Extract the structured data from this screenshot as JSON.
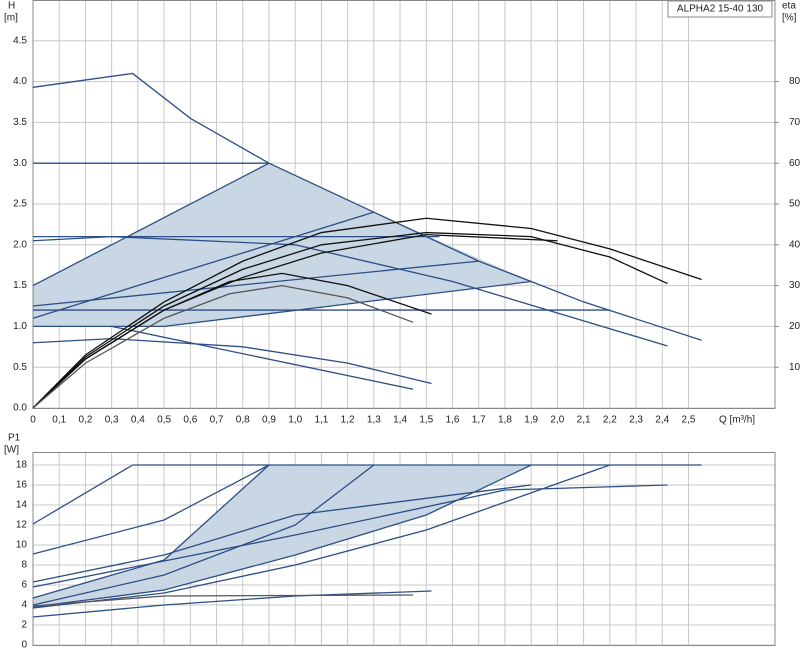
{
  "chart_data": [
    {
      "type": "line",
      "title": "ALPHA2 15-40 130",
      "ylabel": "H",
      "yunit": "[m]",
      "y2label": "eta",
      "y2unit": "[%]",
      "xlabel": "Q [m³/h]",
      "xlim": [
        0,
        2.83
      ],
      "ylim": [
        0,
        5
      ],
      "y2lim": [
        0,
        100
      ],
      "grid": true,
      "xticks": [
        0,
        {
          "value": 0.1,
          "label": "0,1"
        },
        {
          "value": 0.2,
          "label": "0,2"
        },
        {
          "value": 0.3,
          "label": "0,3"
        },
        {
          "value": 0.4,
          "label": "0,4"
        },
        {
          "value": 0.5,
          "label": "0,5"
        },
        {
          "value": 0.6,
          "label": "0,6"
        },
        {
          "value": 0.7,
          "label": "0,7"
        },
        {
          "value": 0.8,
          "label": "0,8"
        },
        {
          "value": 0.9,
          "label": "0,9"
        },
        {
          "value": 1.0,
          "label": "1,0"
        },
        {
          "value": 1.1,
          "label": "1,1"
        },
        {
          "value": 1.2,
          "label": "1,2"
        },
        {
          "value": 1.3,
          "label": "1,3"
        },
        {
          "value": 1.4,
          "label": "1,4"
        },
        {
          "value": 1.5,
          "label": "1,5"
        },
        {
          "value": 1.6,
          "label": "1,6"
        },
        {
          "value": 1.7,
          "label": "1,7"
        },
        {
          "value": 1.8,
          "label": "1,8"
        },
        {
          "value": 1.9,
          "label": "1,9"
        },
        {
          "value": 2.0,
          "label": "2,0"
        },
        {
          "value": 2.1,
          "label": "2,1"
        },
        {
          "value": 2.2,
          "label": "2,2"
        },
        {
          "value": 2.3,
          "label": "2,3"
        },
        {
          "value": 2.4,
          "label": "2,4"
        },
        {
          "value": 2.5,
          "label": "2,5"
        }
      ],
      "yticks": [
        {
          "value": 0,
          "label": "0.0"
        },
        0.5,
        {
          "value": 1,
          "label": "1.0"
        },
        1.5,
        {
          "value": 2,
          "label": "2.0"
        },
        2.5,
        {
          "value": 3,
          "label": "3.0"
        },
        3.5,
        {
          "value": 4,
          "label": "4.0"
        },
        4.5
      ],
      "y2ticks": [
        10,
        20,
        30,
        40,
        50,
        60,
        70,
        80
      ],
      "areas": [
        {
          "color": "#c9d6e4",
          "x": [
            0,
            0.9,
            1.3,
            1.9,
            0.5,
            0
          ],
          "values": [
            1.5,
            3.0,
            2.4,
            1.55,
            1.0,
            1.0
          ]
        }
      ],
      "series": [
        {
          "color": "#2b4f86",
          "x": [
            0,
            0.38,
            0.6,
            0.9,
            1.3,
            1.7,
            2.1,
            2.55
          ],
          "values": [
            3.93,
            4.1,
            3.55,
            3.0,
            2.4,
            1.8,
            1.3,
            0.83
          ]
        },
        {
          "color": "#2b4f86",
          "x": [
            0,
            0.9
          ],
          "values": [
            3.0,
            3.0
          ]
        },
        {
          "color": "#2b4f86",
          "x": [
            0,
            0.9
          ],
          "values": [
            1.5,
            3.0
          ]
        },
        {
          "color": "#2b4f86",
          "x": [
            0,
            1.55
          ],
          "values": [
            2.1,
            2.1
          ]
        },
        {
          "color": "#2b4f86",
          "x": [
            0,
            0.3,
            1.0,
            1.6,
            2.42
          ],
          "values": [
            2.05,
            2.1,
            2.0,
            1.55,
            0.76
          ]
        },
        {
          "color": "#2b4f86",
          "x": [
            0,
            1.3
          ],
          "values": [
            1.1,
            2.4
          ]
        },
        {
          "color": "#2b4f86",
          "x": [
            0,
            1.7
          ],
          "values": [
            1.25,
            1.8
          ]
        },
        {
          "color": "#2b4f86",
          "x": [
            0,
            2.2
          ],
          "values": [
            1.2,
            1.2
          ]
        },
        {
          "color": "#2b4f86",
          "x": [
            0,
            0.5,
            1.9
          ],
          "values": [
            1.0,
            1.0,
            1.55
          ]
        },
        {
          "color": "#2b4f86",
          "x": [
            0,
            0.3,
            0.8,
            1.2,
            1.52
          ],
          "values": [
            0.8,
            0.85,
            0.75,
            0.55,
            0.3
          ]
        },
        {
          "color": "#2b4f86",
          "x": [
            0.3,
            1.45
          ],
          "values": [
            1.0,
            0.23
          ]
        },
        {
          "color": "#111111",
          "axis": "y2",
          "x": [
            0,
            0.2,
            0.5,
            0.8,
            1.1,
            1.5,
            1.9,
            2.2,
            2.55
          ],
          "values": [
            0,
            13,
            26,
            36,
            43,
            46.5,
            44,
            39,
            31.5
          ]
        },
        {
          "color": "#111111",
          "axis": "y2",
          "x": [
            0,
            0.2,
            0.5,
            0.8,
            1.1,
            1.5,
            1.9,
            2.2,
            2.42
          ],
          "values": [
            0,
            12.5,
            25,
            34,
            40,
            43,
            42,
            37,
            30.5
          ]
        },
        {
          "color": "#111111",
          "axis": "y2",
          "x": [
            0,
            0.2,
            0.5,
            0.8,
            1.1,
            1.5,
            2.0
          ],
          "values": [
            0,
            12,
            24,
            32,
            38,
            42.5,
            41
          ]
        },
        {
          "color": "#111111",
          "axis": "y2",
          "x": [
            0,
            0.2,
            0.5,
            0.75,
            0.95,
            1.2,
            1.52
          ],
          "values": [
            0,
            12,
            24,
            31,
            33,
            30,
            23
          ]
        },
        {
          "color": "#555555",
          "axis": "y2",
          "x": [
            0,
            0.2,
            0.5,
            0.75,
            0.95,
            1.2,
            1.45
          ],
          "values": [
            0,
            11,
            22,
            28,
            30,
            27,
            21
          ]
        }
      ]
    },
    {
      "type": "line",
      "ylabel": "P1",
      "yunit": "[W]",
      "xtick_labels": false,
      "xlim": [
        0,
        2.83
      ],
      "ylim": [
        0,
        19.3
      ],
      "grid": true,
      "xticks": [
        0,
        0.1,
        0.2,
        0.3,
        0.4,
        0.5,
        0.6,
        0.7,
        0.8,
        0.9,
        1.0,
        1.1,
        1.2,
        1.3,
        1.4,
        1.5,
        1.6,
        1.7,
        1.8,
        1.9,
        2.0,
        2.1,
        2.2,
        2.3,
        2.4,
        2.5
      ],
      "yticks": [
        0,
        2,
        4,
        6,
        8,
        10,
        12,
        14,
        16,
        18
      ],
      "areas": [
        {
          "color": "#c9d6e4",
          "x": [
            0,
            0.5,
            0.9,
            1.9,
            1.5,
            1.0,
            0.5,
            0
          ],
          "values": [
            4.7,
            8.5,
            18,
            18,
            13,
            9,
            5.5,
            3.8
          ]
        }
      ],
      "series": [
        {
          "color": "#2b4f86",
          "x": [
            0.38,
            2.55
          ],
          "values": [
            18,
            18
          ]
        },
        {
          "color": "#2b4f86",
          "x": [
            0,
            0.38
          ],
          "values": [
            12.1,
            18
          ]
        },
        {
          "color": "#2b4f86",
          "x": [
            0,
            0.5,
            0.9
          ],
          "values": [
            9.1,
            12.5,
            18
          ]
        },
        {
          "color": "#2b4f86",
          "x": [
            0,
            0.5,
            0.9
          ],
          "values": [
            4.7,
            8.5,
            18
          ]
        },
        {
          "color": "#2b4f86",
          "x": [
            0,
            0.5,
            1.0,
            1.3
          ],
          "values": [
            4.0,
            7,
            12,
            18
          ]
        },
        {
          "color": "#2b4f86",
          "x": [
            0,
            0.5,
            1.0,
            1.5,
            1.9
          ],
          "values": [
            3.8,
            5.5,
            9,
            13,
            18
          ]
        },
        {
          "color": "#2b4f86",
          "x": [
            0,
            0.5,
            1.0,
            1.5,
            2.2
          ],
          "values": [
            3.7,
            5.2,
            8,
            11.5,
            18
          ]
        },
        {
          "color": "#2b4f86",
          "x": [
            0,
            1.0,
            1.8,
            2.42
          ],
          "values": [
            5.8,
            11,
            15.5,
            16
          ]
        },
        {
          "color": "#2b4f86",
          "x": [
            0,
            0.5,
            1.0,
            1.9
          ],
          "values": [
            6.3,
            9,
            13,
            16
          ]
        },
        {
          "color": "#2b4f86",
          "x": [
            0,
            0.5,
            1.0,
            1.52
          ],
          "values": [
            2.8,
            4,
            4.9,
            5.4
          ]
        },
        {
          "color": "#555555",
          "x": [
            0,
            0.5,
            1.45
          ],
          "values": [
            3.9,
            4.9,
            5.0
          ]
        }
      ]
    }
  ]
}
